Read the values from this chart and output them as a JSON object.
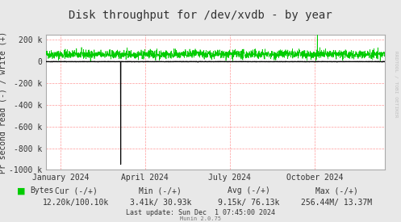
{
  "title": "Disk throughput for /dev/xvdb - by year",
  "ylabel": "Pr second read (-) / write (+)",
  "bg_color": "#e8e8e8",
  "plot_bg_color": "#ffffff",
  "grid_color": "#ff9999",
  "border_color": "#aaaaaa",
  "ylim": [
    -1000000,
    250000
  ],
  "yticks": [
    -1000000,
    -800000,
    -600000,
    -400000,
    -200000,
    0,
    200000
  ],
  "ytick_labels": [
    "-1000 k",
    "-800 k",
    "-600 k",
    "-400 k",
    "-200 k",
    "0",
    "200 k"
  ],
  "xtick_labels": [
    "January 2024",
    "April 2024",
    "July 2024",
    "October 2024"
  ],
  "xtick_positions": [
    0.042,
    0.292,
    0.542,
    0.792
  ],
  "legend_label": "Bytes",
  "legend_color": "#00cc00",
  "line_color_read": "#000000",
  "line_color_write": "#00cc00",
  "cur_text": "Cur (-/+)",
  "cur_val": "12.20k/100.10k",
  "min_text": "Min (-/+)",
  "min_val": "3.41k/ 30.93k",
  "avg_text": "Avg (-/+)",
  "avg_val": "9.15k/ 76.13k",
  "max_text": "Max (-/+)",
  "max_val": "256.44M/ 13.37M",
  "last_update": "Last update: Sun Dec  1 07:45:00 2024",
  "munin_version": "Munin 2.0.75",
  "rrdtool_text": "RRDTOOL / TOBI OETIKER",
  "title_fontsize": 10,
  "axis_fontsize": 7,
  "label_fontsize": 7,
  "stats_fontsize": 7
}
